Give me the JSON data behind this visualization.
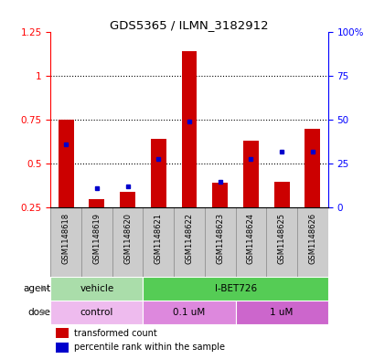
{
  "title": "GDS5365 / ILMN_3182912",
  "samples": [
    "GSM1148618",
    "GSM1148619",
    "GSM1148620",
    "GSM1148621",
    "GSM1148622",
    "GSM1148623",
    "GSM1148624",
    "GSM1148625",
    "GSM1148626"
  ],
  "transformed_count": [
    0.75,
    0.3,
    0.34,
    0.64,
    1.14,
    0.39,
    0.63,
    0.4,
    0.7
  ],
  "percentile_rank_left": [
    0.61,
    0.36,
    0.37,
    0.53,
    0.74,
    0.4,
    0.53,
    0.57,
    0.57
  ],
  "ylim_left": [
    0.25,
    1.25
  ],
  "ylim_right": [
    0,
    100
  ],
  "yticks_left": [
    0.25,
    0.5,
    0.75,
    1.0,
    1.25
  ],
  "ytick_labels_left": [
    "0.25",
    "0.5",
    "0.75",
    "1",
    "1.25"
  ],
  "yticks_right": [
    0,
    25,
    50,
    75,
    100
  ],
  "ytick_labels_right": [
    "0",
    "25",
    "50",
    "75",
    "100%"
  ],
  "bar_color": "#cc0000",
  "percentile_color": "#0000cc",
  "agent_groups": [
    {
      "label": "vehicle",
      "start": 0,
      "end": 3,
      "color": "#aaddaa"
    },
    {
      "label": "I-BET726",
      "start": 3,
      "end": 9,
      "color": "#55cc55"
    }
  ],
  "dose_colors": [
    "#eebbee",
    "#dd88dd",
    "#cc66cc"
  ],
  "dose_groups": [
    {
      "label": "control",
      "start": 0,
      "end": 3
    },
    {
      "label": "0.1 uM",
      "start": 3,
      "end": 6
    },
    {
      "label": "1 uM",
      "start": 6,
      "end": 9
    }
  ],
  "legend_red": "transformed count",
  "legend_blue": "percentile rank within the sample",
  "baseline": 0.25,
  "bar_width": 0.5,
  "grid_lines": [
    0.5,
    0.75,
    1.0
  ],
  "sample_label_bg": "#cccccc",
  "sample_label_border": "#999999"
}
